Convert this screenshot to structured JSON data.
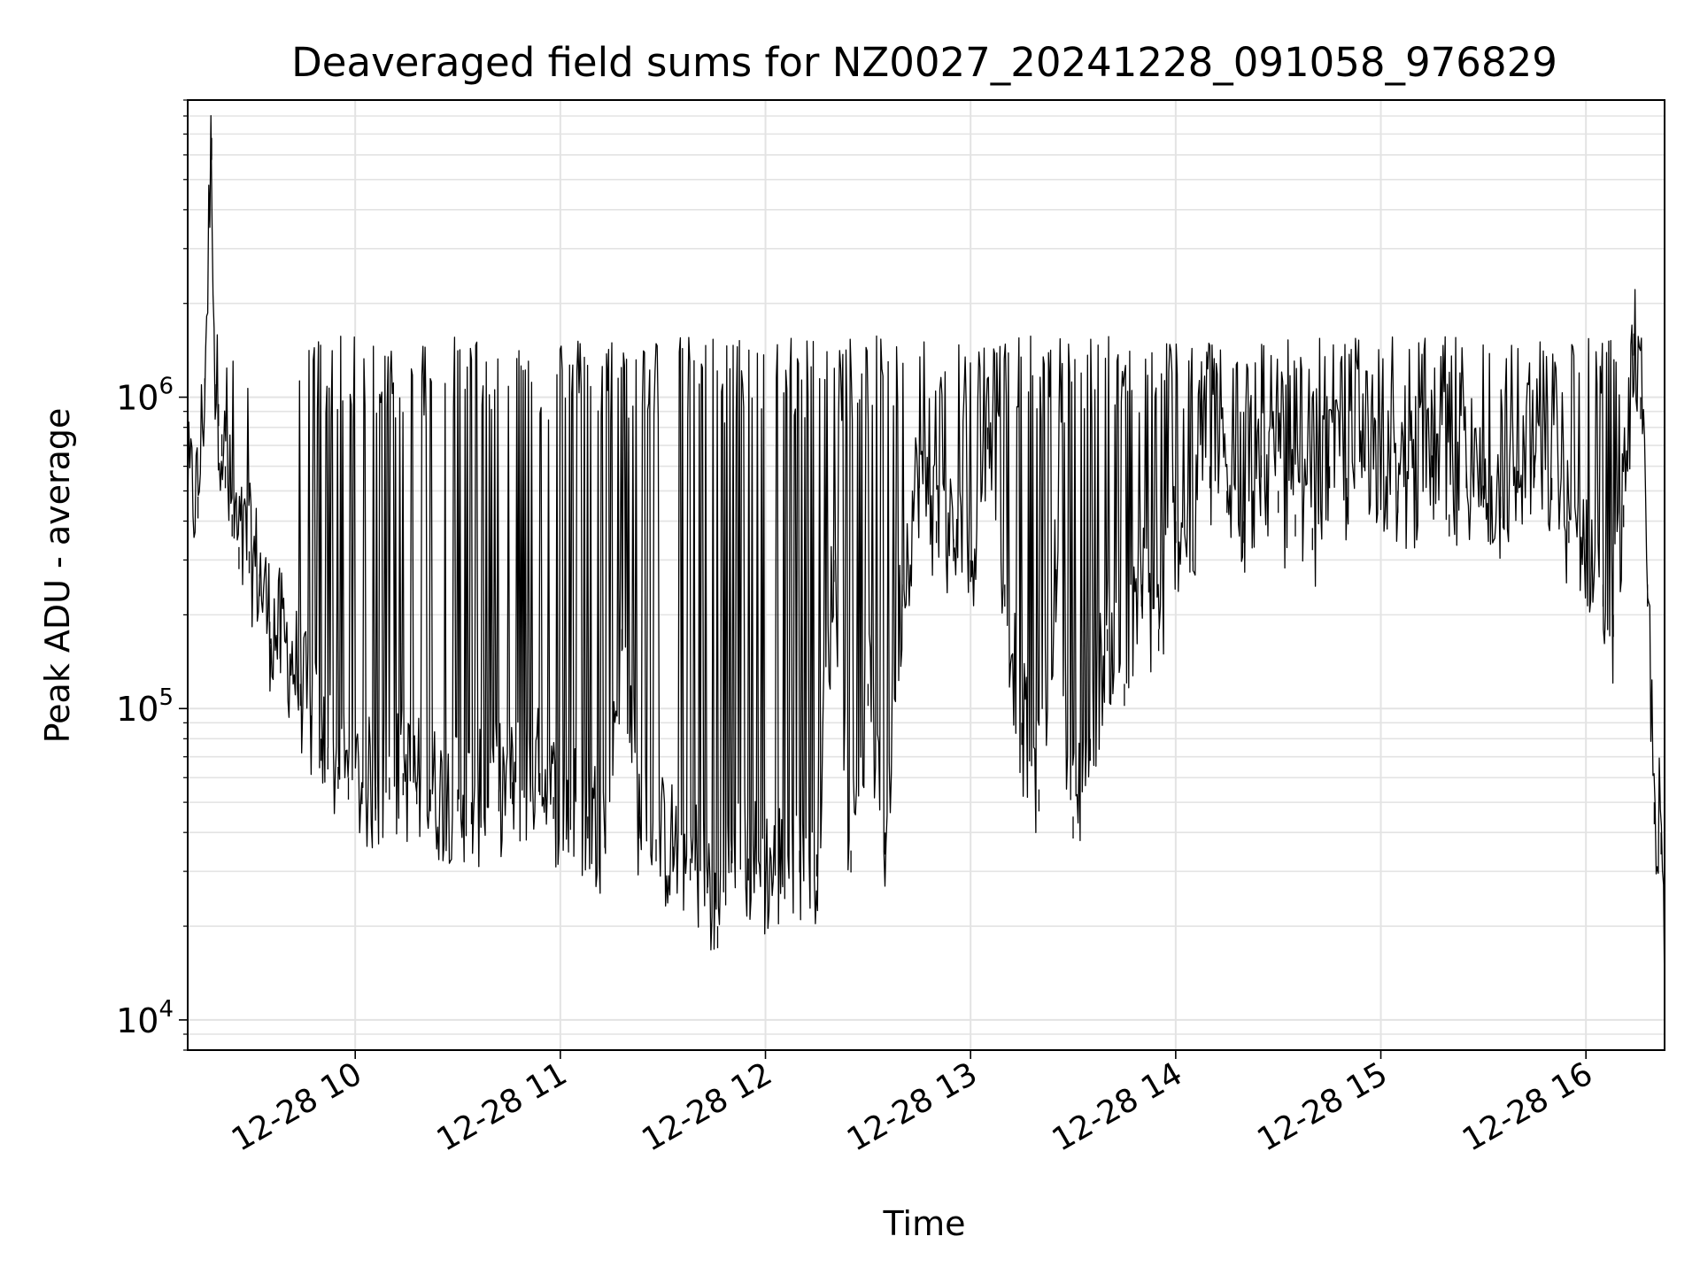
{
  "chart_data": {
    "type": "line",
    "title": "Deaveraged field sums for NZ0027_20241228_091058_976829",
    "xlabel": "Time",
    "ylabel": "Peak ADU - average",
    "yscale": "log",
    "ylim": [
      8000,
      9000000
    ],
    "xlim": [
      "2024-12-28 09:11",
      "2024-12-28 16:23"
    ],
    "x_ticks": [
      "12-28 10",
      "12-28 11",
      "12-28 12",
      "12-28 13",
      "12-28 14",
      "12-28 15",
      "12-28 16"
    ],
    "y_ticks": [
      {
        "base": "10",
        "exp": "4",
        "value": 10000
      },
      {
        "base": "10",
        "exp": "5",
        "value": 100000
      },
      {
        "base": "10",
        "exp": "6",
        "value": 1000000
      }
    ],
    "grid": true,
    "legend": "none",
    "line_color": "#000000",
    "series": [
      {
        "x": [
          "2024-12-28 09:11",
          "2024-12-28 09:14",
          "2024-12-28 09:16",
          "2024-12-28 09:18",
          "2024-12-28 09:19",
          "2024-12-28 09:20",
          "2024-12-28 09:21",
          "2024-12-28 09:22",
          "2024-12-28 09:24",
          "2024-12-28 09:26",
          "2024-12-28 09:29",
          "2024-12-28 09:32",
          "2024-12-28 09:35",
          "2024-12-28 09:38",
          "2024-12-28 09:41",
          "2024-12-28 09:44",
          "2024-12-28 09:47",
          "2024-12-28 09:50",
          "2024-12-28 09:52",
          "2024-12-28 09:55",
          "2024-12-28 09:58",
          "2024-12-28 10:02",
          "2024-12-28 10:06",
          "2024-12-28 10:10",
          "2024-12-28 10:14",
          "2024-12-28 10:18",
          "2024-12-28 10:22",
          "2024-12-28 10:26",
          "2024-12-28 10:30",
          "2024-12-28 10:34",
          "2024-12-28 10:38",
          "2024-12-28 10:42",
          "2024-12-28 10:46",
          "2024-12-28 10:50",
          "2024-12-28 10:54",
          "2024-12-28 10:58",
          "2024-12-28 11:03",
          "2024-12-28 11:08",
          "2024-12-28 11:13",
          "2024-12-28 11:18",
          "2024-12-28 11:23",
          "2024-12-28 11:28",
          "2024-12-28 11:33",
          "2024-12-28 11:38",
          "2024-12-28 11:43",
          "2024-12-28 11:46",
          "2024-12-28 11:50",
          "2024-12-28 11:55",
          "2024-12-28 12:00",
          "2024-12-28 12:05",
          "2024-12-28 12:10",
          "2024-12-28 12:15",
          "2024-12-28 12:20",
          "2024-12-28 12:25",
          "2024-12-28 12:30",
          "2024-12-28 12:35",
          "2024-12-28 12:40",
          "2024-12-28 12:45",
          "2024-12-28 12:50",
          "2024-12-28 12:55",
          "2024-12-28 13:00",
          "2024-12-28 13:05",
          "2024-12-28 13:10",
          "2024-12-28 13:15",
          "2024-12-28 13:20",
          "2024-12-28 13:25",
          "2024-12-28 13:30",
          "2024-12-28 13:35",
          "2024-12-28 13:40",
          "2024-12-28 13:45",
          "2024-12-28 13:50",
          "2024-12-28 13:55",
          "2024-12-28 14:00",
          "2024-12-28 14:05",
          "2024-12-28 14:10",
          "2024-12-28 14:15",
          "2024-12-28 14:20",
          "2024-12-28 14:25",
          "2024-12-28 14:30",
          "2024-12-28 14:35",
          "2024-12-28 14:40",
          "2024-12-28 14:45",
          "2024-12-28 14:50",
          "2024-12-28 14:55",
          "2024-12-28 15:00",
          "2024-12-28 15:05",
          "2024-12-28 15:10",
          "2024-12-28 15:15",
          "2024-12-28 15:20",
          "2024-12-28 15:25",
          "2024-12-28 15:30",
          "2024-12-28 15:35",
          "2024-12-28 15:40",
          "2024-12-28 15:45",
          "2024-12-28 15:50",
          "2024-12-28 15:55",
          "2024-12-28 16:00",
          "2024-12-28 16:05",
          "2024-12-28 16:08",
          "2024-12-28 16:11",
          "2024-12-28 16:14",
          "2024-12-28 16:16",
          "2024-12-28 16:18",
          "2024-12-28 16:20",
          "2024-12-28 16:22",
          "2024-12-28 16:23"
        ],
        "y": [
          500000,
          480000,
          1150000,
          6800000,
          1100000,
          950000,
          760000,
          600000,
          420000,
          330000,
          320000,
          270000,
          190000,
          170000,
          150000,
          120000,
          95000,
          80000,
          75000,
          65000,
          60000,
          58000,
          56000,
          60000,
          62000,
          58000,
          55000,
          52000,
          55000,
          50000,
          52000,
          55000,
          58000,
          60000,
          62000,
          52000,
          48000,
          45000,
          42000,
          180000,
          45000,
          38000,
          36000,
          33000,
          30000,
          20000,
          35000,
          33000,
          30000,
          32000,
          35000,
          34000,
          300000,
          35000,
          120000,
          40000,
          250000,
          600000,
          400000,
          350000,
          300000,
          800000,
          250000,
          90000,
          55000,
          280000,
          45000,
          80000,
          180000,
          120000,
          250000,
          180000,
          400000,
          350000,
          600000,
          500000,
          400000,
          650000,
          500000,
          420000,
          380000,
          600000,
          550000,
          700000,
          620000,
          500000,
          550000,
          650000,
          420000,
          600000,
          520000,
          480000,
          580000,
          650000,
          550000,
          400000,
          350000,
          250000,
          200000,
          450000,
          1600000,
          1000000,
          250000,
          50000,
          40000,
          12000
        ]
      }
    ]
  }
}
